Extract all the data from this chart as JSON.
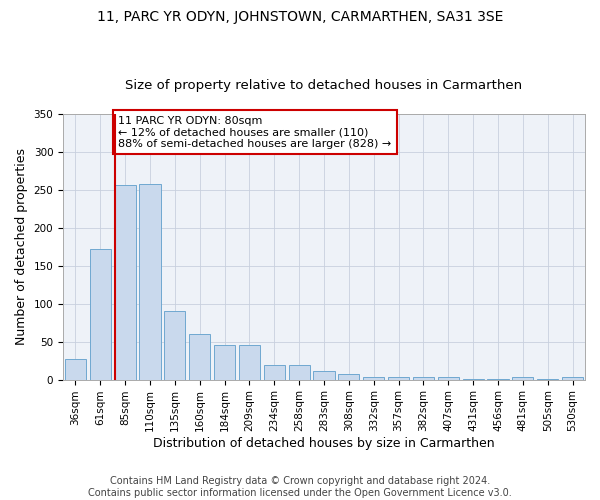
{
  "title": "11, PARC YR ODYN, JOHNSTOWN, CARMARTHEN, SA31 3SE",
  "subtitle": "Size of property relative to detached houses in Carmarthen",
  "xlabel": "Distribution of detached houses by size in Carmarthen",
  "ylabel": "Number of detached properties",
  "bar_values": [
    27,
    172,
    256,
    258,
    90,
    60,
    45,
    45,
    19,
    19,
    11,
    7,
    4,
    4,
    4,
    4,
    1,
    1,
    4,
    1,
    3
  ],
  "bin_labels": [
    "36sqm",
    "61sqm",
    "85sqm",
    "110sqm",
    "135sqm",
    "160sqm",
    "184sqm",
    "209sqm",
    "234sqm",
    "258sqm",
    "283sqm",
    "308sqm",
    "332sqm",
    "357sqm",
    "382sqm",
    "407sqm",
    "431sqm",
    "456sqm",
    "481sqm",
    "505sqm",
    "530sqm"
  ],
  "n_bins": 21,
  "bar_color": "#c9d9ed",
  "bar_edge_color": "#6fa8d0",
  "property_bin_index": 2,
  "red_line_color": "#cc0000",
  "annotation_text": "11 PARC YR ODYN: 80sqm\n← 12% of detached houses are smaller (110)\n88% of semi-detached houses are larger (828) →",
  "annotation_box_color": "#ffffff",
  "annotation_box_edge": "#cc0000",
  "ylim": [
    0,
    350
  ],
  "yticks": [
    0,
    50,
    100,
    150,
    200,
    250,
    300,
    350
  ],
  "grid_color": "#c8d0de",
  "bg_color": "#eef2f8",
  "footer_text": "Contains HM Land Registry data © Crown copyright and database right 2024.\nContains public sector information licensed under the Open Government Licence v3.0.",
  "title_fontsize": 10,
  "subtitle_fontsize": 9.5,
  "xlabel_fontsize": 9,
  "ylabel_fontsize": 9,
  "tick_fontsize": 7.5,
  "annotation_fontsize": 8,
  "footer_fontsize": 7
}
